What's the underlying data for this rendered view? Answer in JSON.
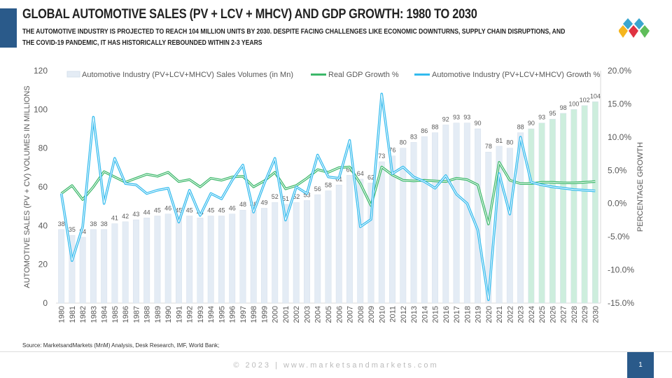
{
  "header": {
    "title": "GLOBAL AUTOMOTIVE SALES (PV + LCV + MHCV) AND GDP GROWTH: 1980 TO 2030",
    "subtitle": "THE AUTOMOTIVE INDUSTRY IS PROJECTED TO REACH 104 MILLION UNITS BY 2030. DESPITE FACING CHALLENGES LIKE ECONOMIC DOWNTURNS, SUPPLY CHAIN DISRUPTIONS, AND THE COVID-19 PANDEMIC, IT HAS HISTORICALLY REBOUNDED WITHIN 2-3 YEARS",
    "logo": "marketsandmarkets-diamond-logo"
  },
  "footer": {
    "source": "Source: MarketsandMarkets (MnM) Analysis, Desk Research, IMF, World Bank;",
    "copyright": "© 2023 | www.marketsandmarkets.com",
    "page": "1"
  },
  "colors": {
    "accent": "#2a5a8a",
    "bar_hist": "#e4ecf5",
    "bar_forecast": "#cdeedd",
    "gdp": "#3cb86a",
    "auto_growth": "#33bbee"
  },
  "chart_data": {
    "type": "bar+line",
    "ylabel": "AUTOMOTIVE SALES (PV + CV) VOLUMES IN MILLIONS",
    "y2label": "PERCENTAGE GROWTH",
    "ylim": [
      0,
      120
    ],
    "yticks": [
      "0",
      "20",
      "40",
      "60",
      "80",
      "100",
      "120"
    ],
    "y2lim": [
      -15,
      20
    ],
    "y2ticks": [
      "-15.0%",
      "-10.0%",
      "-5.0%",
      "0.0%",
      "5.0%",
      "10.0%",
      "15.0%",
      "20.0%"
    ],
    "grid": false,
    "legend_position": "top",
    "forecast_from": "2024",
    "categories": [
      "1980",
      "1981",
      "1982",
      "1983",
      "1984",
      "1985",
      "1986",
      "1987",
      "1988",
      "1989",
      "1990",
      "1991",
      "1992",
      "1993",
      "1994",
      "1995",
      "1996",
      "1997",
      "1998",
      "1999",
      "2000",
      "2001",
      "2002",
      "2003",
      "2004",
      "2005",
      "2006",
      "2007",
      "2008",
      "2009",
      "2010",
      "2011",
      "2012",
      "2013",
      "2014",
      "2015",
      "2016",
      "2017",
      "2018",
      "2019",
      "2020",
      "2021",
      "2022",
      "2023",
      "2024",
      "2025",
      "2026",
      "2027",
      "2028",
      "2029",
      "2030"
    ],
    "series": [
      {
        "name": "Automotive Industry (PV+LCV+MHCV) Sales Volumes (in Mn)",
        "type": "bar",
        "axis": "left",
        "values": [
          38,
          35,
          34,
          38,
          38,
          41,
          42,
          43,
          44,
          45,
          46,
          45,
          45,
          44,
          45,
          45,
          46,
          48,
          48,
          49,
          52,
          51,
          52,
          53,
          56,
          58,
          61,
          66,
          64,
          62,
          73,
          76,
          80,
          83,
          86,
          88,
          92,
          93,
          93,
          90,
          78,
          81,
          80,
          88,
          90,
          93,
          95,
          98,
          100,
          102,
          104
        ]
      },
      {
        "name": "Real GDP Growth %",
        "type": "line",
        "axis": "right",
        "values": [
          1.5,
          2.7,
          0.6,
          2.5,
          4.8,
          4.0,
          3.2,
          3.8,
          4.4,
          4.1,
          4.7,
          3.3,
          3.6,
          2.5,
          3.8,
          3.5,
          4.0,
          4.1,
          2.5,
          3.4,
          4.7,
          2.2,
          2.7,
          3.8,
          5.1,
          4.7,
          5.4,
          5.5,
          3.0,
          -0.3,
          5.5,
          4.3,
          3.5,
          3.4,
          3.5,
          3.4,
          3.3,
          3.8,
          3.6,
          2.8,
          -3.1,
          6.2,
          3.5,
          3.0,
          3.0,
          3.2,
          3.2,
          3.1,
          3.1,
          3.2,
          3.3
        ]
      },
      {
        "name": "Automotive Industry (PV+LCV+MHCV) Growth %",
        "type": "line",
        "axis": "right",
        "values": [
          1.5,
          -8.6,
          -3.5,
          13.0,
          0.0,
          6.8,
          3.0,
          2.8,
          1.5,
          2.0,
          2.3,
          -2.8,
          2.0,
          -1.8,
          1.5,
          0.7,
          3.5,
          5.8,
          -1.3,
          3.0,
          6.8,
          -2.5,
          2.5,
          1.5,
          7.3,
          4.0,
          3.8,
          9.5,
          -3.5,
          -2.4,
          16.5,
          4.5,
          5.5,
          4.0,
          3.3,
          2.3,
          4.2,
          1.4,
          0.0,
          -4.0,
          -14.5,
          4.5,
          -1.6,
          10.0,
          3.2,
          2.8,
          2.5,
          2.3,
          2.1,
          2.0,
          1.9
        ]
      }
    ]
  }
}
